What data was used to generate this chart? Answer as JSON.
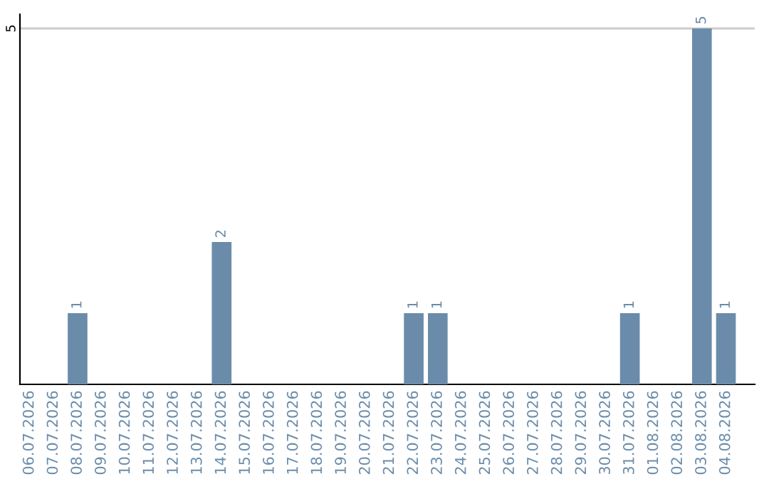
{
  "chart_data": {
    "type": "bar",
    "categories": [
      "06.07.2026",
      "07.07.2026",
      "08.07.2026",
      "09.07.2026",
      "10.07.2026",
      "11.07.2026",
      "12.07.2026",
      "13.07.2026",
      "14.07.2026",
      "15.07.2026",
      "16.07.2026",
      "17.07.2026",
      "18.07.2026",
      "19.07.2026",
      "20.07.2026",
      "21.07.2026",
      "22.07.2026",
      "23.07.2026",
      "24.07.2026",
      "25.07.2026",
      "26.07.2026",
      "27.07.2026",
      "28.07.2026",
      "29.07.2026",
      "30.07.2026",
      "31.07.2026",
      "01.08.2026",
      "02.08.2026",
      "03.08.2026",
      "04.08.2026"
    ],
    "values": [
      0,
      0,
      1,
      0,
      0,
      0,
      0,
      0,
      2,
      0,
      0,
      0,
      0,
      0,
      0,
      0,
      1,
      1,
      0,
      0,
      0,
      0,
      0,
      0,
      0,
      1,
      0,
      0,
      5,
      1
    ],
    "value_labels": [
      null,
      null,
      "1",
      null,
      null,
      null,
      null,
      null,
      "2",
      null,
      null,
      null,
      null,
      null,
      null,
      null,
      "1",
      "1",
      null,
      null,
      null,
      null,
      null,
      null,
      null,
      "1",
      null,
      null,
      "5",
      "1"
    ],
    "color": "#6a8caa",
    "ylim": [
      0,
      5.2
    ],
    "yticks": [
      5
    ],
    "grid": "y",
    "legend": false
  }
}
